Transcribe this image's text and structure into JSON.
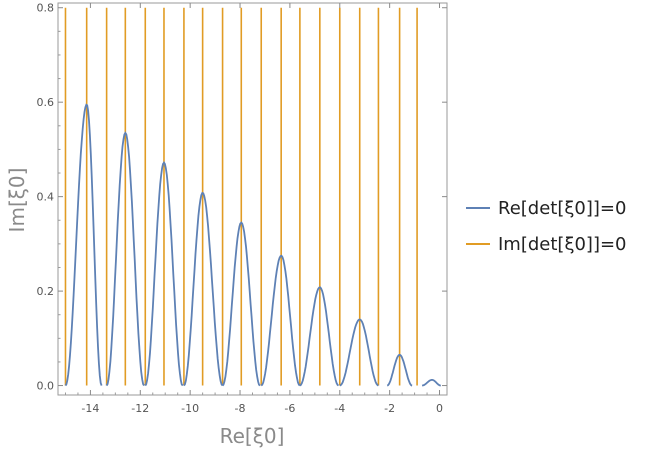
{
  "chart_data": {
    "type": "line",
    "xlabel": "Re[ξ0]",
    "ylabel": "Im[ξ0]",
    "xlim": [
      -15.3,
      0.3
    ],
    "ylim": [
      -0.02,
      0.81
    ],
    "x_ticks": [
      -14,
      -12,
      -10,
      -8,
      -6,
      -4,
      -2,
      0
    ],
    "y_ticks": [
      0.0,
      0.2,
      0.4,
      0.6,
      0.8
    ],
    "x_tick_labels": [
      "-14",
      "-12",
      "-10",
      "-8",
      "-6",
      "-4",
      "-2",
      "0"
    ],
    "y_tick_labels": [
      "0.0",
      "0.2",
      "0.4",
      "0.6",
      "0.8"
    ],
    "legend_position": "right",
    "series": [
      {
        "name": "Re[det[ξ0]]=0",
        "color": "#5E81B5",
        "style": "curve",
        "humps": [
          {
            "x_start": -15.0,
            "x_peak": -14.15,
            "x_end": -13.55,
            "y_peak": 0.595
          },
          {
            "x_start": -13.35,
            "x_peak": -12.6,
            "x_end": -11.85,
            "y_peak": 0.535
          },
          {
            "x_start": -11.8,
            "x_peak": -11.05,
            "x_end": -10.3,
            "y_peak": 0.472
          },
          {
            "x_start": -10.25,
            "x_peak": -9.5,
            "x_end": -8.7,
            "y_peak": 0.408
          },
          {
            "x_start": -8.7,
            "x_peak": -7.95,
            "x_end": -7.2,
            "y_peak": 0.345
          },
          {
            "x_start": -7.15,
            "x_peak": -6.35,
            "x_end": -5.6,
            "y_peak": 0.275
          },
          {
            "x_start": -5.6,
            "x_peak": -4.8,
            "x_end": -4.05,
            "y_peak": 0.208
          },
          {
            "x_start": -4.0,
            "x_peak": -3.2,
            "x_end": -2.45,
            "y_peak": 0.14
          },
          {
            "x_start": -2.1,
            "x_peak": -1.6,
            "x_end": -1.1,
            "y_peak": 0.065
          },
          {
            "x_start": -0.7,
            "x_peak": -0.3,
            "x_end": 0.05,
            "y_peak": 0.012
          }
        ]
      },
      {
        "name": "Im[det[ξ0]]=0",
        "color": "#E19C24",
        "style": "vertical-lines",
        "x": [
          -15.0,
          -14.15,
          -13.35,
          -12.6,
          -11.8,
          -11.05,
          -10.25,
          -9.5,
          -8.7,
          -7.95,
          -7.15,
          -6.35,
          -5.6,
          -4.8,
          -4.0,
          -3.2,
          -2.45,
          -1.6,
          -0.9
        ]
      }
    ]
  }
}
